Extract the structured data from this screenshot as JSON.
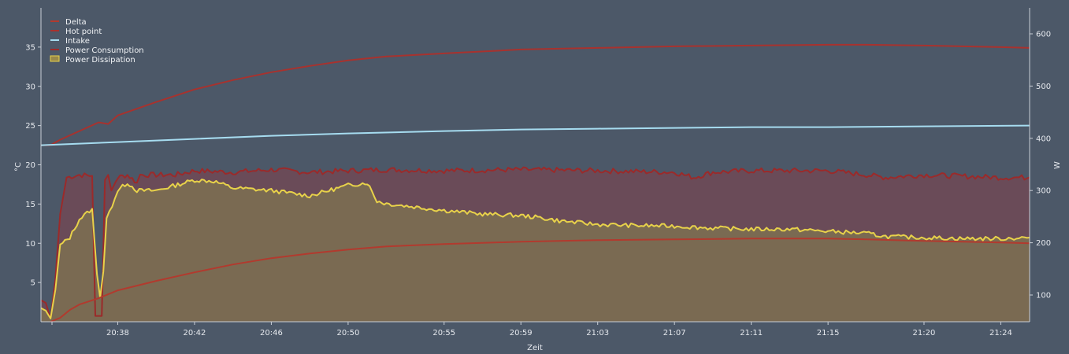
{
  "chart_data": {
    "type": "line",
    "xlabel": "Zeit",
    "ylabel_left": "°C",
    "ylabel_right": "W",
    "x_ticks": [
      "20:38",
      "20:42",
      "20:46",
      "20:50",
      "20:55",
      "20:59",
      "21:03",
      "21:07",
      "21:11",
      "21:15",
      "21:20",
      "21:24"
    ],
    "x_range": [
      "20:34",
      "21:25:30"
    ],
    "y_left": {
      "range": [
        0,
        40
      ],
      "ticks": [
        5,
        10,
        15,
        20,
        25,
        30,
        35
      ]
    },
    "y_right": {
      "range": [
        50,
        650
      ],
      "ticks": [
        100,
        200,
        300,
        400,
        500,
        600
      ]
    },
    "grid": false,
    "legend_position": "top-left",
    "colors": {
      "background": "#4c5868",
      "axis": "#c9ced6",
      "delta": "#b23a2e",
      "hot_point": "#a8322e",
      "intake": "#a6dcf0",
      "power_consumption": "#9b2a2a",
      "power_consumption_fill": "#6a4b58",
      "power_dissipation": "#e8d24a",
      "power_dissipation_fill": "#7a6a52"
    },
    "series": [
      {
        "name": "Delta",
        "axis": "left",
        "points": [
          [
            "20:34:30",
            0
          ],
          [
            "20:35",
            0.5
          ],
          [
            "20:35:30",
            1.5
          ],
          [
            "20:36",
            2.2
          ],
          [
            "20:37",
            3.0
          ],
          [
            "20:38",
            4.0
          ],
          [
            "20:40",
            5.2
          ],
          [
            "20:42",
            6.3
          ],
          [
            "20:44",
            7.3
          ],
          [
            "20:46",
            8.1
          ],
          [
            "20:48",
            8.7
          ],
          [
            "20:50",
            9.2
          ],
          [
            "20:52",
            9.6
          ],
          [
            "20:55",
            9.9
          ],
          [
            "20:59",
            10.2
          ],
          [
            "21:03",
            10.4
          ],
          [
            "21:07",
            10.5
          ],
          [
            "21:11",
            10.6
          ],
          [
            "21:15",
            10.6
          ],
          [
            "21:17",
            10.5
          ],
          [
            "21:20",
            10.3
          ],
          [
            "21:24",
            10.1
          ],
          [
            "21:25:30",
            10.0
          ]
        ]
      },
      {
        "name": "Hot point",
        "axis": "left",
        "points": [
          [
            "20:34",
            22.5
          ],
          [
            "20:34:30",
            22.5
          ],
          [
            "20:35",
            23.2
          ],
          [
            "20:36",
            24.3
          ],
          [
            "20:37",
            25.4
          ],
          [
            "20:37:30",
            25.2
          ],
          [
            "20:38",
            26.3
          ],
          [
            "20:40",
            28.0
          ],
          [
            "20:42",
            29.6
          ],
          [
            "20:44",
            30.8
          ],
          [
            "20:46",
            31.8
          ],
          [
            "20:48",
            32.6
          ],
          [
            "20:50",
            33.3
          ],
          [
            "20:52",
            33.8
          ],
          [
            "20:55",
            34.2
          ],
          [
            "20:59",
            34.7
          ],
          [
            "21:03",
            34.9
          ],
          [
            "21:07",
            35.1
          ],
          [
            "21:11",
            35.2
          ],
          [
            "21:15",
            35.3
          ],
          [
            "21:17",
            35.3
          ],
          [
            "21:20",
            35.2
          ],
          [
            "21:24",
            35.0
          ],
          [
            "21:25:30",
            34.9
          ]
        ]
      },
      {
        "name": "Intake",
        "axis": "left",
        "points": [
          [
            "20:34",
            22.5
          ],
          [
            "20:35",
            22.6
          ],
          [
            "20:38",
            22.9
          ],
          [
            "20:42",
            23.3
          ],
          [
            "20:46",
            23.7
          ],
          [
            "20:50",
            24.0
          ],
          [
            "20:55",
            24.3
          ],
          [
            "20:59",
            24.5
          ],
          [
            "21:03",
            24.6
          ],
          [
            "21:07",
            24.7
          ],
          [
            "21:11",
            24.8
          ],
          [
            "21:15",
            24.8
          ],
          [
            "21:20",
            24.9
          ],
          [
            "21:25:30",
            25.0
          ]
        ]
      },
      {
        "name": "Power Consumption",
        "axis": "right",
        "points": [
          [
            "20:34",
            90
          ],
          [
            "20:34:15",
            85
          ],
          [
            "20:34:30",
            55
          ],
          [
            "20:34:45",
            130
          ],
          [
            "20:35",
            255
          ],
          [
            "20:35:20",
            325
          ],
          [
            "20:36",
            330
          ],
          [
            "20:36:40",
            328
          ],
          [
            "20:36:50",
            60
          ],
          [
            "20:37:10",
            60
          ],
          [
            "20:37:20",
            320
          ],
          [
            "20:37:30",
            330
          ],
          [
            "20:37:40",
            300
          ],
          [
            "20:38",
            325
          ],
          [
            "20:38:30",
            330
          ],
          [
            "20:39",
            315
          ],
          [
            "20:39:10",
            330
          ],
          [
            "20:40",
            330
          ],
          [
            "20:41",
            330
          ],
          [
            "20:42",
            338
          ],
          [
            "20:44",
            335
          ],
          [
            "20:46",
            340
          ],
          [
            "20:48",
            335
          ],
          [
            "20:50",
            338
          ],
          [
            "20:52",
            340
          ],
          [
            "20:55",
            338
          ],
          [
            "20:59",
            340
          ],
          [
            "21:03",
            338
          ],
          [
            "21:07",
            335
          ],
          [
            "21:08",
            325
          ],
          [
            "21:09",
            335
          ],
          [
            "21:11",
            338
          ],
          [
            "21:15",
            338
          ],
          [
            "21:17",
            330
          ],
          [
            "21:18",
            325
          ],
          [
            "21:20",
            330
          ],
          [
            "21:24",
            325
          ],
          [
            "21:25:30",
            325
          ]
        ]
      },
      {
        "name": "Power Dissipation",
        "axis": "right",
        "points": [
          [
            "20:34",
            75
          ],
          [
            "20:34:15",
            70
          ],
          [
            "20:34:30",
            55
          ],
          [
            "20:34:45",
            110
          ],
          [
            "20:35",
            195
          ],
          [
            "20:35:30",
            210
          ],
          [
            "20:36",
            245
          ],
          [
            "20:36:40",
            265
          ],
          [
            "20:36:55",
            140
          ],
          [
            "20:37:05",
            95
          ],
          [
            "20:37:15",
            145
          ],
          [
            "20:37:25",
            245
          ],
          [
            "20:38",
            300
          ],
          [
            "20:38:30",
            315
          ],
          [
            "20:39",
            300
          ],
          [
            "20:40",
            300
          ],
          [
            "20:41",
            310
          ],
          [
            "20:42",
            320
          ],
          [
            "20:43",
            318
          ],
          [
            "20:44",
            305
          ],
          [
            "20:46",
            300
          ],
          [
            "20:48",
            290
          ],
          [
            "20:49",
            300
          ],
          [
            "20:50",
            310
          ],
          [
            "20:51",
            315
          ],
          [
            "20:51:30",
            280
          ],
          [
            "20:52",
            275
          ],
          [
            "20:55",
            262
          ],
          [
            "20:57",
            255
          ],
          [
            "20:59",
            252
          ],
          [
            "21:00",
            248
          ],
          [
            "21:01",
            242
          ],
          [
            "21:03",
            235
          ],
          [
            "21:05",
            233
          ],
          [
            "21:07",
            232
          ],
          [
            "21:09",
            228
          ],
          [
            "21:11",
            226
          ],
          [
            "21:13",
            226
          ],
          [
            "21:15",
            222
          ],
          [
            "21:17",
            218
          ],
          [
            "21:18",
            212
          ],
          [
            "21:20",
            210
          ],
          [
            "21:22",
            208
          ],
          [
            "21:24",
            208
          ],
          [
            "21:25:30",
            210
          ]
        ]
      }
    ],
    "fills": [
      {
        "series": "Power Consumption",
        "fill": true
      },
      {
        "series": "Power Dissipation",
        "fill": true
      }
    ]
  }
}
